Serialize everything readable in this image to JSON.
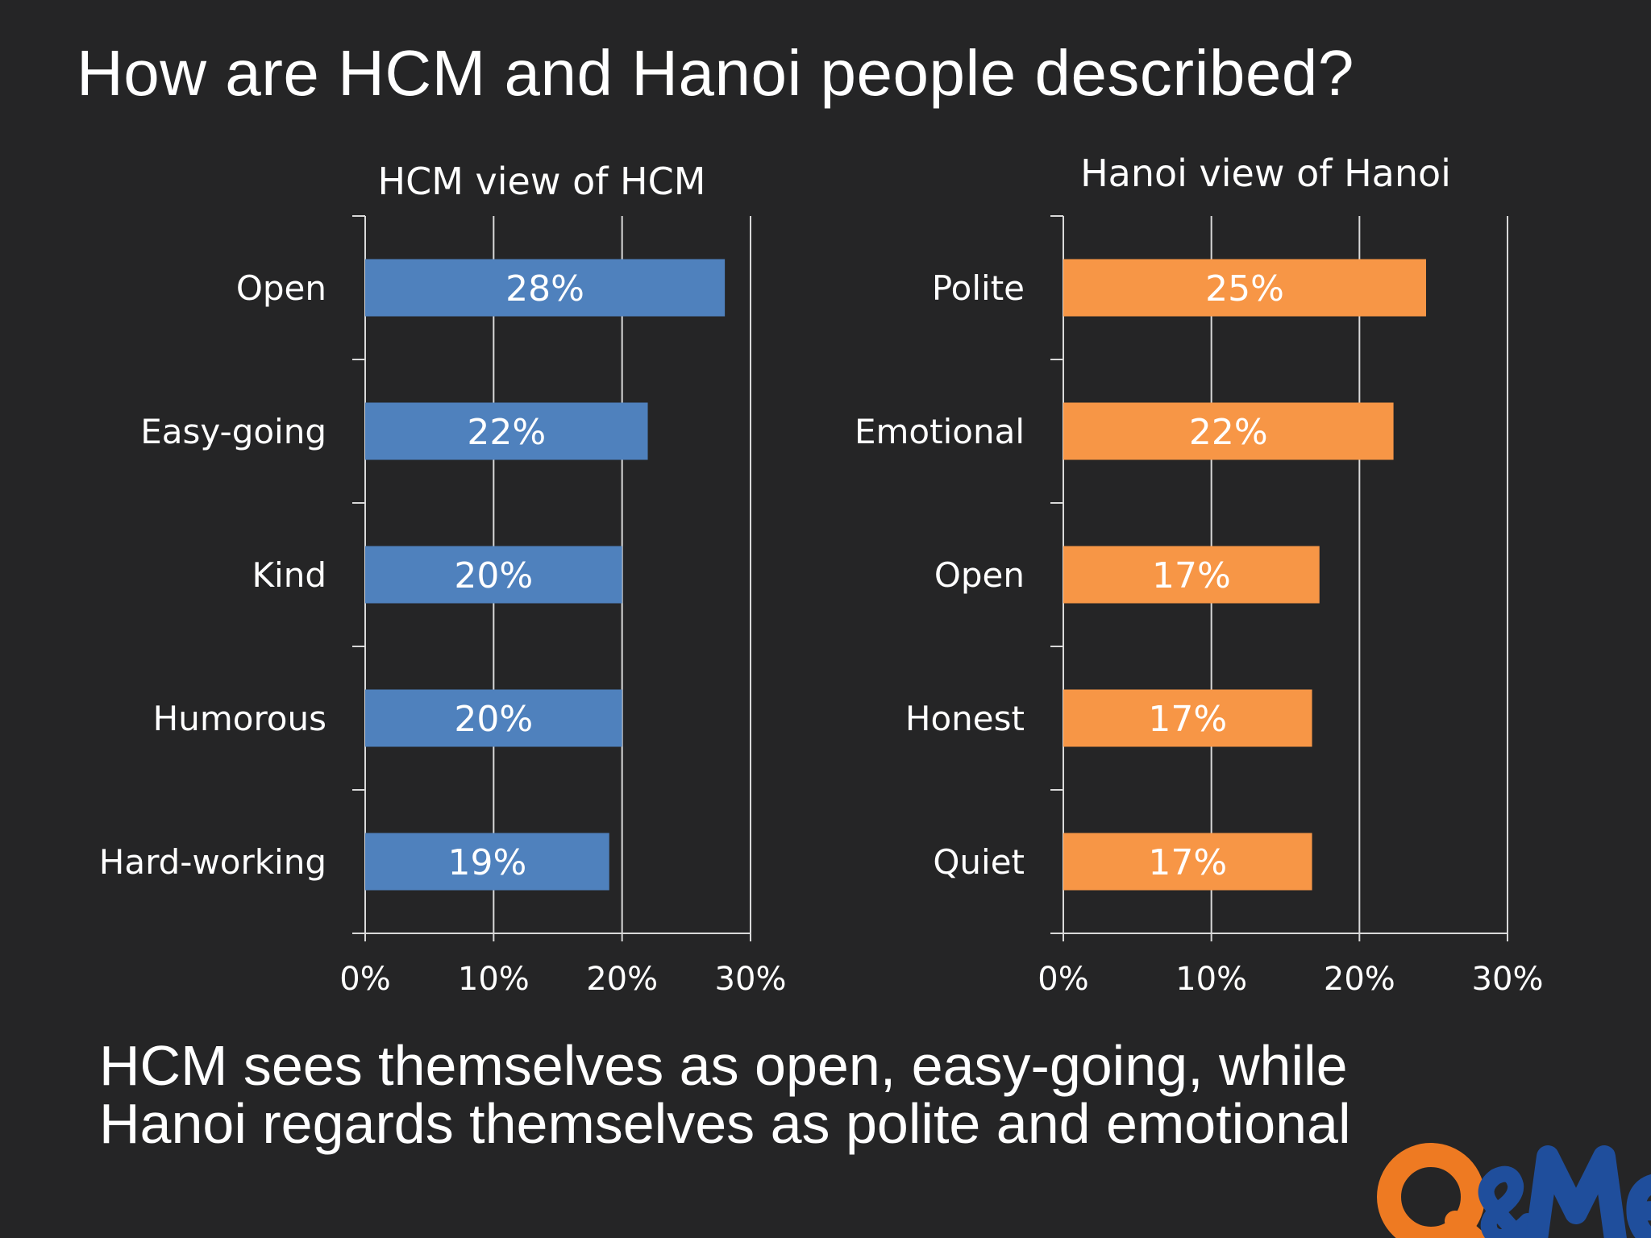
{
  "slide": {
    "title": "How are HCM and Hanoi people described?",
    "caption_lines": [
      "HCM sees themselves as open, easy-going, while",
      "Hanoi regards themselves as polite and emotional"
    ],
    "logo_text": "Q&Me",
    "logo_colors": {
      "q": "#ee7a22",
      "me": "#1f4e9c"
    }
  },
  "chart_data": [
    {
      "type": "bar",
      "orientation": "horizontal",
      "title": "HCM view of HCM",
      "categories": [
        "Open",
        "Easy-going",
        "Kind",
        "Humorous",
        "Hard-working"
      ],
      "values": [
        28,
        22,
        20,
        20,
        19
      ],
      "value_labels": [
        "28%",
        "22%",
        "20%",
        "20%",
        "19%"
      ],
      "xlim": [
        0,
        30
      ],
      "x_ticks": [
        "0%",
        "10%",
        "20%",
        "30%"
      ],
      "grid": true,
      "color": "#4f81bd"
    },
    {
      "type": "bar",
      "orientation": "horizontal",
      "title": "Hanoi view of Hanoi",
      "categories": [
        "Polite",
        "Emotional",
        "Open",
        "Honest",
        "Quiet"
      ],
      "values": [
        24.5,
        22.3,
        17.3,
        16.8,
        16.8
      ],
      "value_labels": [
        "25%",
        "22%",
        "17%",
        "17%",
        "17%"
      ],
      "xlim": [
        0,
        30
      ],
      "x_ticks": [
        "0%",
        "10%",
        "20%",
        "30%"
      ],
      "grid": true,
      "color": "#f79646"
    }
  ]
}
